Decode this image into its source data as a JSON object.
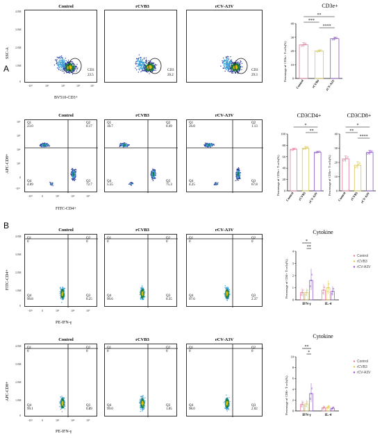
{
  "panels": {
    "a": "A",
    "b": "B"
  },
  "row1": {
    "titles": [
      "Control",
      "rCVB3",
      "rCV-A3V"
    ],
    "ylabel": "SSC-A",
    "xlabel": "BV510-CD3+",
    "gate_name": "CD3",
    "gate_values": [
      "23.5",
      "20.2",
      "29.3"
    ],
    "yticks": [
      "4.0M",
      "3.0M",
      "2.0M",
      "1.0M",
      "0"
    ],
    "xticks": [
      "-10³",
      "10³",
      "10⁴",
      "10⁵",
      "10⁶"
    ]
  },
  "row2": {
    "titles": [
      "Control",
      "rCVB3",
      "rCV-A3V"
    ],
    "ylabel": "APC-CD8+",
    "xlabel": "FITC-CD4+",
    "quadrant_names": [
      "Q1",
      "Q2",
      "Q3",
      "Q4"
    ],
    "quadrants": [
      {
        "q1": "23.0",
        "q2": "0.17",
        "q3": "72.7",
        "q4": "4.09"
      },
      {
        "q1": "18.7",
        "q2": "0.49",
        "q3": "75.3",
        "q4": "5.55"
      },
      {
        "q1": "26.8",
        "q2": "1.13",
        "q3": "67.8",
        "q4": "4.25"
      }
    ],
    "yticks": [
      "10⁶",
      "10⁵",
      "10⁴",
      "10³",
      "0",
      "-10³"
    ],
    "xticks": [
      "-10³",
      "0",
      "10³",
      "10⁴",
      "10⁵"
    ]
  },
  "row3": {
    "titles": [
      "Control",
      "rCVB3",
      "rCV-A3V"
    ],
    "ylabel": "FITC-CD4+",
    "xlabel": "PE-IFN-γ",
    "quadrant_names": [
      "Q1",
      "Q2",
      "Q3",
      "Q4"
    ],
    "quadrants": [
      {
        "q1": "0",
        "q2": "0",
        "q3": "0.25",
        "q4": "99.8"
      },
      {
        "q1": "0",
        "q2": "0",
        "q3": "0.35",
        "q4": "99.6"
      },
      {
        "q1": "0",
        "q2": "0",
        "q3": "2.37",
        "q4": "97.6"
      }
    ],
    "yticks": [
      "4.0M",
      "3.0M",
      "2.0M",
      "1.0M",
      "0"
    ],
    "xticks": [
      "-10³",
      "0",
      "10³",
      "10⁴",
      "10⁵"
    ]
  },
  "row4": {
    "titles": [
      "Control",
      "rCVB3",
      "rCV-A3V"
    ],
    "ylabel": "APC-CD8+",
    "xlabel": "PE-IFN-γ",
    "quadrant_names": [
      "Q1",
      "Q2",
      "Q3",
      "Q4"
    ],
    "quadrants": [
      {
        "q1": "0",
        "q2": "0",
        "q3": "0.89",
        "q4": "99.1"
      },
      {
        "q1": "0",
        "q2": "0",
        "q3": "1.05",
        "q4": "99.0"
      },
      {
        "q1": "0",
        "q2": "0",
        "q3": "2.02",
        "q4": "98.0"
      }
    ],
    "yticks": [
      "4.0M",
      "3.0M",
      "2.0M",
      "1.0M",
      "0"
    ],
    "xticks": [
      "-10³",
      "0",
      "10³",
      "10⁴",
      "10⁵"
    ]
  },
  "bar_cd3": {
    "title": "CD3e+",
    "ylabel": "Percentage of CD3e+ T cells(%)",
    "categories": [
      "Control",
      "rCVB3",
      "rCV-A3V"
    ],
    "values": [
      24.5,
      20.0,
      29.0
    ],
    "errors": [
      1.5,
      0.8,
      1.2
    ],
    "ylim": [
      0,
      40
    ],
    "yticks": [
      "0",
      "10",
      "20",
      "30",
      "40"
    ],
    "sig": [
      "**",
      "***",
      "****"
    ]
  },
  "bar_cd4": {
    "title": "CD3CD4+",
    "ylabel": "Percentage of CD3e+ T cells(%)",
    "categories": [
      "Control",
      "rCVB3",
      "rCV-A3V"
    ],
    "values": [
      73,
      75,
      68
    ],
    "errors": [
      2,
      3,
      1.5
    ],
    "ylim": [
      0,
      100
    ],
    "yticks": [
      "0",
      "20",
      "40",
      "60",
      "80",
      "100"
    ],
    "sig": [
      "*",
      "**"
    ]
  },
  "bar_cd8": {
    "title": "CD3CD8+",
    "ylabel": "Percentage of CD3e+ T cells(%)",
    "categories": [
      "Control",
      "rCVB3",
      "rCV-A3V"
    ],
    "values": [
      22.5,
      18,
      27
    ],
    "errors": [
      2,
      2.5,
      1.5
    ],
    "ylim": [
      0,
      40
    ],
    "yticks": [
      "0",
      "10",
      "20",
      "30",
      "40"
    ],
    "sig": [
      "*",
      "**",
      "****"
    ]
  },
  "cyto1": {
    "title": "Cytokine",
    "ylabel": "Percentage of CD4+ T cells(%)",
    "groups": [
      "IFN-γ",
      "IL-4"
    ],
    "series": [
      {
        "name": "Control",
        "values": [
          0.6,
          0.8
        ],
        "color": "#e07b9a"
      },
      {
        "name": "rCVB3",
        "values": [
          0.6,
          1.0
        ],
        "color": "#d8c64a"
      },
      {
        "name": "rCV-A3V",
        "values": [
          1.6,
          0.7
        ],
        "color": "#8a55c6"
      }
    ],
    "ylim": [
      0,
      4
    ],
    "yticks": [
      "0",
      "1",
      "2",
      "3",
      "4"
    ],
    "sig": [
      "*",
      "**"
    ]
  },
  "cyto2": {
    "title": "Cytokine",
    "ylabel": "Percentage of CD8+ T cells(%)",
    "groups": [
      "IFN-γ",
      "IL-4"
    ],
    "series": [
      {
        "name": "Control",
        "values": [
          1.2,
          0.6
        ],
        "color": "#e07b9a"
      },
      {
        "name": "rCVB3",
        "values": [
          1.3,
          0.7
        ],
        "color": "#d8c64a"
      },
      {
        "name": "rCV-A3V",
        "values": [
          3.2,
          0.5
        ],
        "color": "#8a55c6"
      }
    ],
    "ylim": [
      0,
      10
    ],
    "yticks": [
      "0",
      "2",
      "4",
      "6",
      "8",
      "10"
    ],
    "sig": [
      "**",
      "*"
    ]
  },
  "colors": {
    "dense": "#1a7a3a",
    "mid": "#3aa0d8",
    "sparse": "#2a3a9a",
    "hot": "#e0c000"
  }
}
